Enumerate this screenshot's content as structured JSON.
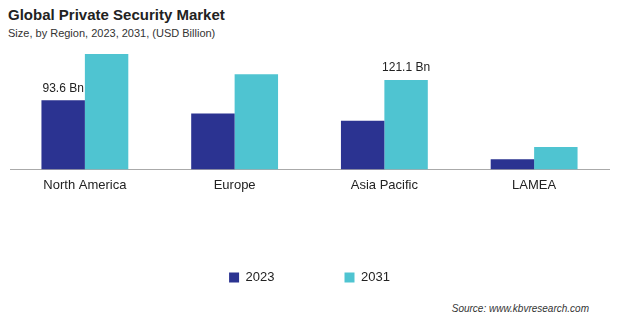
{
  "chart_data": {
    "type": "bar",
    "title": "Global Private Security Market",
    "subtitle": "Size, by Region, 2023, 2031, (USD Billion)",
    "categories": [
      "North America",
      "Europe",
      "Asia Pacific",
      "LAMEA"
    ],
    "series": [
      {
        "name": "2023",
        "color": "#2b3391",
        "values": [
          93.6,
          75.8,
          66,
          13.8
        ],
        "value_labels": [
          "93.6 Bn",
          null,
          null,
          null
        ]
      },
      {
        "name": "2031",
        "color": "#4fc4d1",
        "values": [
          156.6,
          129,
          121.1,
          30.5
        ],
        "value_labels": [
          null,
          null,
          "121.1 Bn",
          null
        ]
      }
    ],
    "ylim": [
      0,
      170
    ],
    "grid": false,
    "legend": "bottom",
    "tick_labels": "x",
    "annotations": [
      "Source: www.kbvresearch.com"
    ]
  }
}
